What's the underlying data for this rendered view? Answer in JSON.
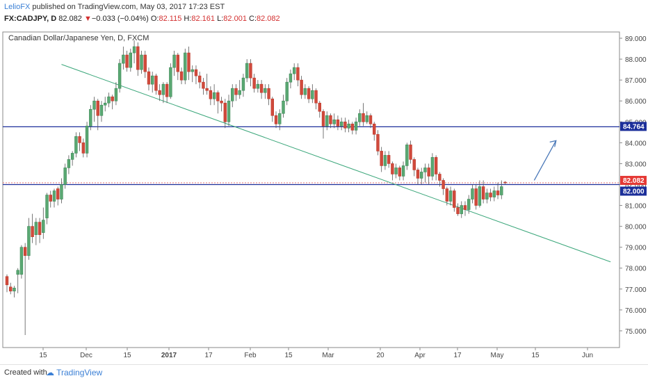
{
  "header": {
    "author": "LelioFX",
    "published_text": "published on TradingView.com, May 03, 2017 17:23 EST",
    "symbol": "FX:CADJPY, D",
    "last": "82.082",
    "change": "−0.033 (−0.04%)",
    "open": "82.115",
    "high": "82.161",
    "low": "82.001",
    "close": "82.082",
    "labels": {
      "o": "O:",
      "h": "H:",
      "l": "L:",
      "c": "C:"
    }
  },
  "footer": {
    "created_with": "Created with",
    "brand": "TradingView"
  },
  "chart_data": {
    "type": "candlestick",
    "title": "Canadian Dollar/Japanese Yen, D, FXCM",
    "ylim": [
      74.2,
      89.3
    ],
    "y_ticks": [
      "75.000",
      "76.000",
      "77.000",
      "78.000",
      "79.000",
      "80.000",
      "81.000",
      "82.000",
      "83.000",
      "84.000",
      "85.000",
      "86.000",
      "87.000",
      "88.000",
      "89.000"
    ],
    "x_ticks": [
      "15",
      "Dec",
      "15",
      "2017",
      "17",
      "Feb",
      "15",
      "Mar",
      "20",
      "Apr",
      "17",
      "May",
      "15",
      "Jun"
    ],
    "price_labels": [
      {
        "value": 84.764,
        "text": "84.764",
        "color": "#1c2f9a"
      },
      {
        "value": 82.082,
        "text": "82.082",
        "color": "#e53935"
      },
      {
        "value": 82.0,
        "text": "82.000",
        "color": "#1c2f9a"
      }
    ],
    "horizontal_lines": [
      84.764,
      82.0,
      82.082
    ],
    "trend_line": {
      "from": [
        15,
        87.75
      ],
      "to": [
        166,
        78.3
      ]
    },
    "arrow": {
      "from": [
        145,
        82.2
      ],
      "to": [
        151,
        84.1
      ]
    },
    "candles": [
      [
        0,
        77.6,
        77.2,
        76.85,
        77.7
      ],
      [
        1,
        77.1,
        76.9,
        76.75,
        77.3
      ],
      [
        2,
        76.9,
        77.05,
        76.6,
        77.15
      ],
      [
        3,
        77.7,
        77.9,
        76.8,
        78.0
      ],
      [
        4,
        77.7,
        79.0,
        77.5,
        79.1
      ],
      [
        5,
        79.0,
        78.6,
        74.8,
        79.2
      ],
      [
        6,
        78.6,
        80.0,
        78.4,
        80.4
      ],
      [
        7,
        80.0,
        79.5,
        79.2,
        80.6
      ],
      [
        8,
        79.6,
        80.2,
        79.1,
        80.4
      ],
      [
        9,
        80.2,
        79.6,
        79.2,
        80.4
      ],
      [
        10,
        79.7,
        80.3,
        79.4,
        80.9
      ],
      [
        11,
        80.4,
        81.5,
        80.1,
        81.6
      ],
      [
        12,
        81.5,
        81.2,
        80.9,
        81.7
      ],
      [
        13,
        81.2,
        81.7,
        80.9,
        81.8
      ],
      [
        14,
        81.8,
        81.3,
        81.0,
        81.9
      ],
      [
        15,
        81.3,
        82.0,
        81.1,
        82.3
      ],
      [
        16,
        82.0,
        82.8,
        81.8,
        83.0
      ],
      [
        17,
        82.8,
        83.2,
        82.5,
        83.4
      ],
      [
        18,
        83.2,
        83.5,
        82.9,
        83.6
      ],
      [
        19,
        83.5,
        84.3,
        83.3,
        84.5
      ],
      [
        20,
        84.3,
        84.0,
        83.6,
        84.5
      ],
      [
        21,
        84.0,
        83.5,
        83.3,
        84.2
      ],
      [
        22,
        83.5,
        84.8,
        83.3,
        85.0
      ],
      [
        23,
        84.8,
        85.6,
        84.6,
        85.8
      ],
      [
        24,
        85.6,
        86.0,
        85.0,
        86.2
      ],
      [
        25,
        86.0,
        85.3,
        84.6,
        86.1
      ],
      [
        26,
        85.3,
        85.8,
        85.0,
        86.0
      ],
      [
        27,
        85.8,
        85.9,
        85.5,
        86.2
      ],
      [
        28,
        85.9,
        86.2,
        85.7,
        86.4
      ],
      [
        29,
        86.2,
        86.0,
        85.6,
        86.3
      ],
      [
        30,
        86.0,
        86.6,
        85.8,
        86.9
      ],
      [
        31,
        86.6,
        87.8,
        86.4,
        88.0
      ],
      [
        32,
        87.8,
        88.2,
        87.5,
        88.6
      ],
      [
        33,
        88.2,
        87.6,
        87.4,
        88.4
      ],
      [
        34,
        87.6,
        88.3,
        87.4,
        88.5
      ],
      [
        35,
        88.3,
        88.6,
        87.8,
        88.9
      ],
      [
        36,
        88.6,
        87.5,
        87.2,
        88.8
      ],
      [
        37,
        87.5,
        88.2,
        87.3,
        88.4
      ],
      [
        38,
        88.2,
        87.4,
        87.1,
        88.4
      ],
      [
        39,
        87.4,
        86.8,
        86.5,
        87.6
      ],
      [
        40,
        86.8,
        87.2,
        86.4,
        87.4
      ],
      [
        41,
        87.2,
        86.5,
        86.3,
        87.3
      ],
      [
        42,
        86.5,
        86.3,
        86.0,
        86.8
      ],
      [
        43,
        86.3,
        86.8,
        85.9,
        86.9
      ],
      [
        44,
        86.8,
        86.2,
        85.9,
        86.9
      ],
      [
        45,
        86.2,
        87.6,
        86.1,
        87.8
      ],
      [
        46,
        87.6,
        88.2,
        87.2,
        88.4
      ],
      [
        47,
        88.2,
        87.4,
        87.0,
        88.3
      ],
      [
        48,
        87.4,
        87.0,
        86.8,
        87.6
      ],
      [
        49,
        87.0,
        88.3,
        86.8,
        88.5
      ],
      [
        50,
        88.3,
        87.4,
        87.0,
        88.6
      ],
      [
        51,
        87.4,
        87.5,
        86.9,
        87.7
      ],
      [
        52,
        87.5,
        87.2,
        86.8,
        87.7
      ],
      [
        53,
        87.2,
        86.9,
        86.6,
        87.4
      ],
      [
        54,
        86.9,
        86.6,
        86.3,
        87.1
      ],
      [
        55,
        86.6,
        86.5,
        86.3,
        87.3
      ],
      [
        56,
        86.5,
        86.1,
        85.8,
        86.7
      ],
      [
        57,
        86.1,
        86.4,
        85.8,
        86.8
      ],
      [
        58,
        86.4,
        86.0,
        85.4,
        86.5
      ],
      [
        59,
        86.0,
        85.9,
        85.5,
        86.2
      ],
      [
        60,
        85.9,
        85.0,
        84.7,
        86.1
      ],
      [
        61,
        85.0,
        86.0,
        84.8,
        86.3
      ],
      [
        62,
        86.0,
        86.6,
        85.7,
        86.8
      ],
      [
        63,
        86.6,
        86.3,
        86.0,
        86.8
      ],
      [
        64,
        86.3,
        86.5,
        86.1,
        87.0
      ],
      [
        65,
        86.5,
        87.1,
        86.2,
        87.3
      ],
      [
        66,
        87.1,
        87.8,
        86.9,
        88.0
      ],
      [
        67,
        87.8,
        87.1,
        86.7,
        88.0
      ],
      [
        68,
        87.1,
        86.6,
        86.4,
        87.3
      ],
      [
        69,
        86.6,
        86.8,
        86.4,
        87.0
      ],
      [
        70,
        86.8,
        86.4,
        86.1,
        87.0
      ],
      [
        71,
        86.4,
        86.6,
        86.1,
        86.8
      ],
      [
        72,
        86.6,
        86.1,
        85.8,
        86.8
      ],
      [
        73,
        86.1,
        85.3,
        85.0,
        86.2
      ],
      [
        74,
        85.3,
        84.9,
        84.7,
        85.5
      ],
      [
        75,
        84.9,
        85.4,
        84.6,
        85.6
      ],
      [
        76,
        85.4,
        86.0,
        85.2,
        86.3
      ],
      [
        77,
        86.0,
        86.9,
        85.8,
        87.1
      ],
      [
        78,
        86.9,
        87.3,
        86.6,
        87.5
      ],
      [
        79,
        87.3,
        87.6,
        87.0,
        87.8
      ],
      [
        80,
        87.6,
        87.0,
        86.7,
        87.8
      ],
      [
        81,
        87.0,
        86.3,
        86.1,
        87.2
      ],
      [
        82,
        86.3,
        86.6,
        86.1,
        86.8
      ],
      [
        83,
        86.6,
        86.1,
        85.9,
        86.7
      ],
      [
        84,
        86.1,
        86.5,
        85.9,
        86.8
      ],
      [
        85,
        86.5,
        85.9,
        85.6,
        86.6
      ],
      [
        86,
        85.9,
        85.5,
        85.2,
        86.0
      ],
      [
        87,
        85.5,
        84.8,
        84.2,
        85.6
      ],
      [
        88,
        84.8,
        85.3,
        84.6,
        85.5
      ],
      [
        89,
        85.3,
        84.9,
        84.7,
        85.4
      ],
      [
        90,
        84.9,
        85.1,
        84.7,
        85.4
      ],
      [
        91,
        85.1,
        84.8,
        84.6,
        85.3
      ],
      [
        92,
        84.8,
        85.0,
        84.6,
        85.2
      ],
      [
        93,
        85.0,
        84.7,
        84.5,
        85.2
      ],
      [
        94,
        84.7,
        84.9,
        84.5,
        85.1
      ],
      [
        95,
        84.9,
        84.6,
        84.4,
        85.0
      ],
      [
        96,
        84.6,
        85.0,
        84.4,
        85.2
      ],
      [
        97,
        85.0,
        85.4,
        84.8,
        85.6
      ],
      [
        98,
        85.4,
        85.0,
        84.8,
        85.9
      ],
      [
        99,
        85.0,
        85.3,
        84.9,
        85.5
      ],
      [
        100,
        85.3,
        84.9,
        84.7,
        85.4
      ],
      [
        101,
        84.9,
        84.4,
        84.1,
        85.0
      ],
      [
        102,
        84.4,
        83.6,
        83.4,
        84.6
      ],
      [
        103,
        83.6,
        82.9,
        82.6,
        83.8
      ],
      [
        104,
        82.9,
        83.4,
        82.7,
        83.6
      ],
      [
        105,
        83.4,
        83.0,
        82.8,
        83.6
      ],
      [
        106,
        83.0,
        82.5,
        82.2,
        83.1
      ],
      [
        107,
        82.5,
        82.8,
        82.3,
        83.0
      ],
      [
        108,
        82.8,
        82.4,
        82.2,
        82.9
      ],
      [
        109,
        82.4,
        82.9,
        82.2,
        83.1
      ],
      [
        110,
        82.9,
        83.9,
        82.7,
        84.0
      ],
      [
        111,
        83.9,
        83.2,
        83.0,
        84.1
      ],
      [
        112,
        83.2,
        82.7,
        82.4,
        83.3
      ],
      [
        113,
        82.7,
        82.3,
        82.0,
        82.8
      ],
      [
        114,
        82.3,
        82.6,
        82.0,
        82.8
      ],
      [
        115,
        82.6,
        82.8,
        82.1,
        83.0
      ],
      [
        116,
        82.8,
        82.4,
        82.0,
        83.0
      ],
      [
        117,
        82.4,
        83.3,
        82.2,
        83.5
      ],
      [
        118,
        83.3,
        82.5,
        82.2,
        83.4
      ],
      [
        119,
        82.5,
        82.2,
        81.9,
        82.6
      ],
      [
        120,
        82.2,
        81.8,
        81.5,
        82.3
      ],
      [
        121,
        81.8,
        81.2,
        81.0,
        81.9
      ],
      [
        122,
        81.2,
        81.7,
        81.0,
        81.9
      ],
      [
        123,
        81.7,
        80.9,
        80.7,
        81.8
      ],
      [
        124,
        80.9,
        80.6,
        80.5,
        81.1
      ],
      [
        125,
        80.6,
        81.0,
        80.4,
        81.2
      ],
      [
        126,
        81.0,
        80.8,
        80.5,
        81.2
      ],
      [
        127,
        80.8,
        81.3,
        80.6,
        81.5
      ],
      [
        128,
        81.3,
        81.8,
        81.1,
        82.0
      ],
      [
        129,
        81.8,
        81.0,
        80.8,
        82.0
      ],
      [
        130,
        81.0,
        81.9,
        80.9,
        82.2
      ],
      [
        131,
        81.9,
        81.3,
        81.1,
        82.2
      ],
      [
        132,
        81.3,
        81.6,
        81.1,
        81.8
      ],
      [
        133,
        81.6,
        81.4,
        81.2,
        81.8
      ],
      [
        134,
        81.4,
        81.7,
        81.2,
        81.9
      ],
      [
        135,
        81.7,
        81.5,
        81.3,
        82.1
      ],
      [
        136,
        81.5,
        81.9,
        81.3,
        82.2
      ],
      [
        137,
        82.115,
        82.082,
        82.001,
        82.161
      ]
    ]
  }
}
